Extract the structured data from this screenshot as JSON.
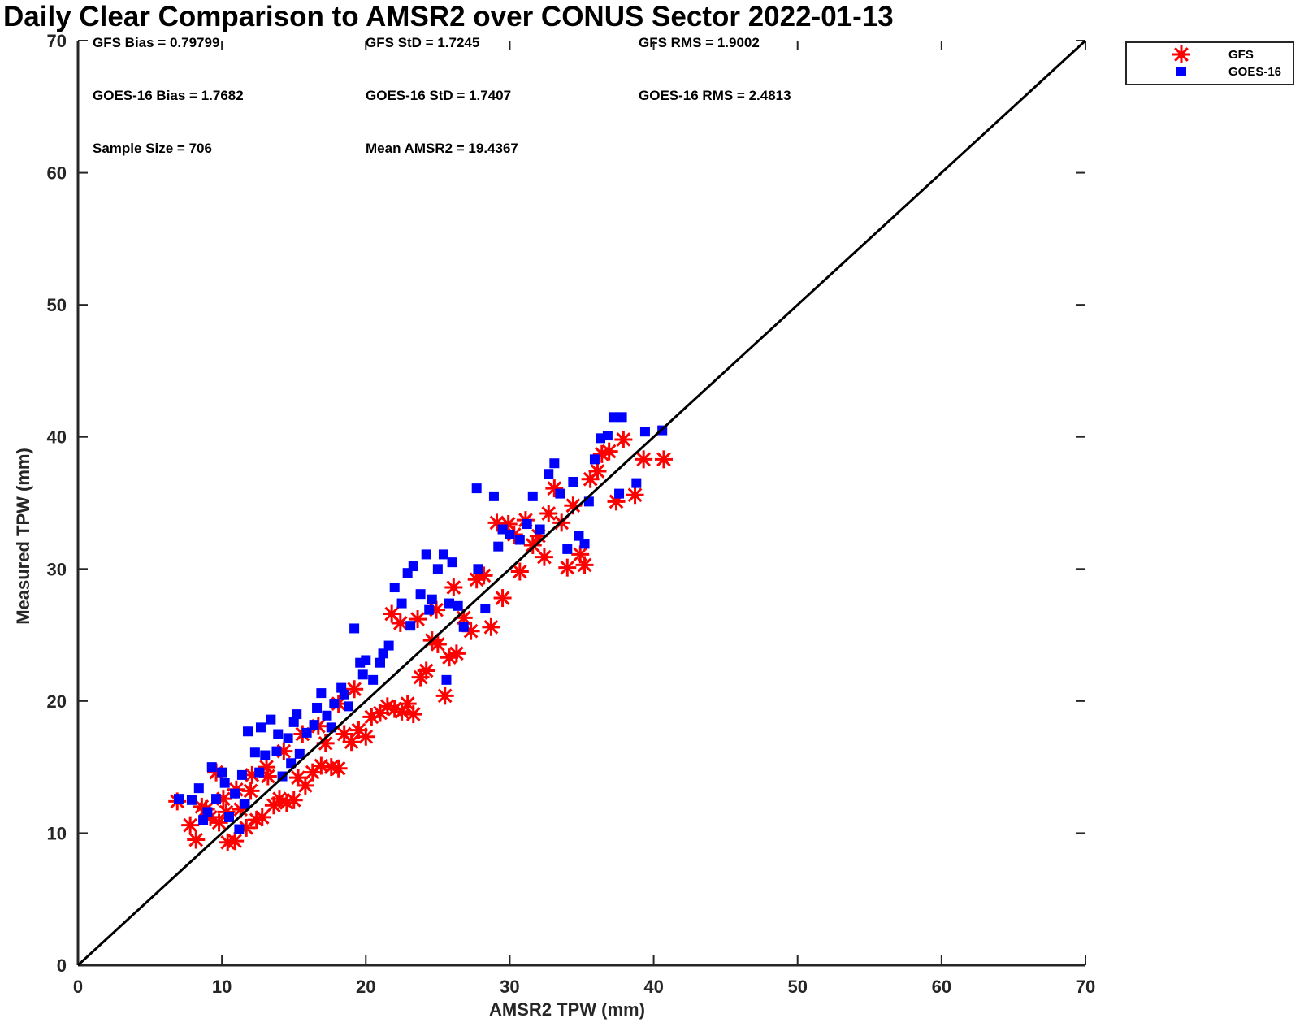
{
  "chart_data": {
    "type": "scatter",
    "title": "Daily Clear Comparison to AMSR2 over CONUS Sector 2022-01-13",
    "xlabel": "AMSR2 TPW (mm)",
    "ylabel": "Measured TPW (mm)",
    "xlim": [
      0,
      70
    ],
    "ylim": [
      0,
      70
    ],
    "xticks": [
      "0",
      "10",
      "20",
      "30",
      "40",
      "50",
      "60",
      "70"
    ],
    "yticks": [
      "0",
      "10",
      "20",
      "30",
      "40",
      "50",
      "60",
      "70"
    ],
    "grid": false,
    "legend_position": "top-right",
    "reference_line": {
      "x": [
        0,
        70
      ],
      "y": [
        0,
        70
      ],
      "color": "#000000"
    },
    "stats": [
      [
        "GFS Bias = 0.79799",
        "GFS StD = 1.7245",
        "GFS RMS = 1.9002"
      ],
      [
        "GOES-16 Bias = 1.7682",
        "GOES-16 StD = 1.7407",
        "GOES-16 RMS = 2.4813"
      ],
      [
        "Sample Size = 706",
        "Mean AMSR2 = 19.4367"
      ]
    ],
    "series": [
      {
        "name": "GFS",
        "marker": "asterisk",
        "color": "#ff0000",
        "points": [
          [
            6.9,
            12.4
          ],
          [
            7.8,
            10.6
          ],
          [
            8.2,
            9.5
          ],
          [
            8.6,
            12.0
          ],
          [
            9.2,
            11.2
          ],
          [
            9.8,
            10.8
          ],
          [
            10.1,
            12.6
          ],
          [
            10.4,
            9.3
          ],
          [
            10.9,
            9.4
          ],
          [
            11.3,
            11.8
          ],
          [
            11.7,
            10.4
          ],
          [
            12.0,
            13.2
          ],
          [
            12.4,
            11.0
          ],
          [
            12.8,
            11.2
          ],
          [
            13.2,
            14.3
          ],
          [
            13.6,
            12.1
          ],
          [
            14.0,
            12.6
          ],
          [
            14.5,
            12.3
          ],
          [
            15.0,
            12.5
          ],
          [
            15.3,
            14.2
          ],
          [
            15.8,
            13.6
          ],
          [
            16.3,
            14.6
          ],
          [
            16.9,
            15.1
          ],
          [
            17.2,
            16.8
          ],
          [
            17.6,
            15.0
          ],
          [
            18.1,
            14.9
          ],
          [
            18.5,
            17.5
          ],
          [
            19.0,
            16.9
          ],
          [
            19.5,
            17.8
          ],
          [
            20.0,
            17.3
          ],
          [
            20.4,
            18.8
          ],
          [
            21.0,
            19.1
          ],
          [
            21.5,
            19.6
          ],
          [
            22.0,
            19.4
          ],
          [
            22.5,
            19.2
          ],
          [
            22.9,
            19.8
          ],
          [
            23.3,
            19.0
          ],
          [
            23.8,
            21.8
          ],
          [
            24.2,
            22.3
          ],
          [
            24.6,
            24.6
          ],
          [
            25.0,
            24.3
          ],
          [
            25.5,
            20.4
          ],
          [
            25.8,
            23.3
          ],
          [
            26.3,
            23.6
          ],
          [
            26.8,
            26.3
          ],
          [
            27.3,
            25.3
          ],
          [
            27.7,
            29.2
          ],
          [
            28.2,
            29.5
          ],
          [
            28.7,
            25.6
          ],
          [
            29.1,
            33.5
          ],
          [
            29.5,
            27.8
          ],
          [
            29.9,
            33.4
          ],
          [
            30.3,
            32.6
          ],
          [
            30.7,
            29.8
          ],
          [
            31.1,
            33.7
          ],
          [
            31.6,
            31.8
          ],
          [
            32.0,
            32.5
          ],
          [
            32.4,
            30.9
          ],
          [
            32.7,
            34.2
          ],
          [
            33.1,
            36.1
          ],
          [
            33.6,
            33.5
          ],
          [
            34.0,
            30.1
          ],
          [
            34.4,
            34.8
          ],
          [
            34.9,
            31.1
          ],
          [
            35.2,
            30.3
          ],
          [
            35.6,
            36.8
          ],
          [
            36.1,
            37.4
          ],
          [
            36.4,
            38.7
          ],
          [
            36.9,
            38.9
          ],
          [
            37.4,
            35.1
          ],
          [
            37.9,
            39.8
          ],
          [
            38.7,
            35.6
          ],
          [
            39.3,
            38.3
          ],
          [
            40.7,
            38.3
          ],
          [
            21.8,
            26.6
          ],
          [
            22.4,
            25.9
          ],
          [
            23.6,
            26.2
          ],
          [
            24.9,
            26.9
          ],
          [
            26.1,
            28.6
          ],
          [
            19.2,
            20.9
          ],
          [
            18.1,
            19.8
          ],
          [
            16.7,
            18.1
          ],
          [
            15.6,
            17.5
          ],
          [
            14.3,
            16.2
          ],
          [
            13.1,
            15.0
          ],
          [
            12.1,
            14.4
          ],
          [
            11.0,
            13.3
          ],
          [
            10.3,
            11.6
          ],
          [
            8.9,
            11.8
          ],
          [
            9.6,
            14.6
          ]
        ]
      },
      {
        "name": "GOES-16",
        "marker": "square",
        "color": "#0000ff",
        "points": [
          [
            7.0,
            12.6
          ],
          [
            7.9,
            12.5
          ],
          [
            8.4,
            13.4
          ],
          [
            9.0,
            11.6
          ],
          [
            9.6,
            12.6
          ],
          [
            10.0,
            14.6
          ],
          [
            10.5,
            11.2
          ],
          [
            10.9,
            13.0
          ],
          [
            11.2,
            10.3
          ],
          [
            11.6,
            12.2
          ],
          [
            11.8,
            17.7
          ],
          [
            12.3,
            16.1
          ],
          [
            12.6,
            14.6
          ],
          [
            13.0,
            15.9
          ],
          [
            13.4,
            18.6
          ],
          [
            13.8,
            16.2
          ],
          [
            14.2,
            14.3
          ],
          [
            14.6,
            17.2
          ],
          [
            15.0,
            18.4
          ],
          [
            15.4,
            16.0
          ],
          [
            15.9,
            17.6
          ],
          [
            16.4,
            18.2
          ],
          [
            16.9,
            20.6
          ],
          [
            17.3,
            18.9
          ],
          [
            17.8,
            19.8
          ],
          [
            18.3,
            21.0
          ],
          [
            18.8,
            19.6
          ],
          [
            19.2,
            25.5
          ],
          [
            19.6,
            22.9
          ],
          [
            20.0,
            23.1
          ],
          [
            20.5,
            21.6
          ],
          [
            21.0,
            22.9
          ],
          [
            21.6,
            24.2
          ],
          [
            22.0,
            28.6
          ],
          [
            22.5,
            27.4
          ],
          [
            22.9,
            29.7
          ],
          [
            23.3,
            30.2
          ],
          [
            23.8,
            28.1
          ],
          [
            24.2,
            31.1
          ],
          [
            24.6,
            27.7
          ],
          [
            25.0,
            30.0
          ],
          [
            25.4,
            31.1
          ],
          [
            25.6,
            21.6
          ],
          [
            26.0,
            30.5
          ],
          [
            26.4,
            27.2
          ],
          [
            26.8,
            25.6
          ],
          [
            27.7,
            36.1
          ],
          [
            27.8,
            30.0
          ],
          [
            28.3,
            27.0
          ],
          [
            28.9,
            35.5
          ],
          [
            29.2,
            31.7
          ],
          [
            29.5,
            33.0
          ],
          [
            30.0,
            32.6
          ],
          [
            30.7,
            32.2
          ],
          [
            31.2,
            33.4
          ],
          [
            31.6,
            35.5
          ],
          [
            32.1,
            33.0
          ],
          [
            32.7,
            37.2
          ],
          [
            33.1,
            38.0
          ],
          [
            33.5,
            35.7
          ],
          [
            34.0,
            31.5
          ],
          [
            34.4,
            36.6
          ],
          [
            34.8,
            32.5
          ],
          [
            35.2,
            31.9
          ],
          [
            35.5,
            35.1
          ],
          [
            35.9,
            38.3
          ],
          [
            36.3,
            39.9
          ],
          [
            36.8,
            40.1
          ],
          [
            37.2,
            41.5
          ],
          [
            37.6,
            35.7
          ],
          [
            37.8,
            41.5
          ],
          [
            38.8,
            36.5
          ],
          [
            39.4,
            40.4
          ],
          [
            40.6,
            40.5
          ],
          [
            12.7,
            18.0
          ],
          [
            13.9,
            17.5
          ],
          [
            15.2,
            19.0
          ],
          [
            16.6,
            19.5
          ],
          [
            18.5,
            20.5
          ],
          [
            19.8,
            22.0
          ],
          [
            21.2,
            23.6
          ],
          [
            23.1,
            25.7
          ],
          [
            24.4,
            26.9
          ],
          [
            25.8,
            27.4
          ],
          [
            11.4,
            14.4
          ],
          [
            10.2,
            13.8
          ],
          [
            9.3,
            15.0
          ],
          [
            8.7,
            11.0
          ],
          [
            14.8,
            15.3
          ],
          [
            17.6,
            18.0
          ]
        ]
      }
    ]
  }
}
